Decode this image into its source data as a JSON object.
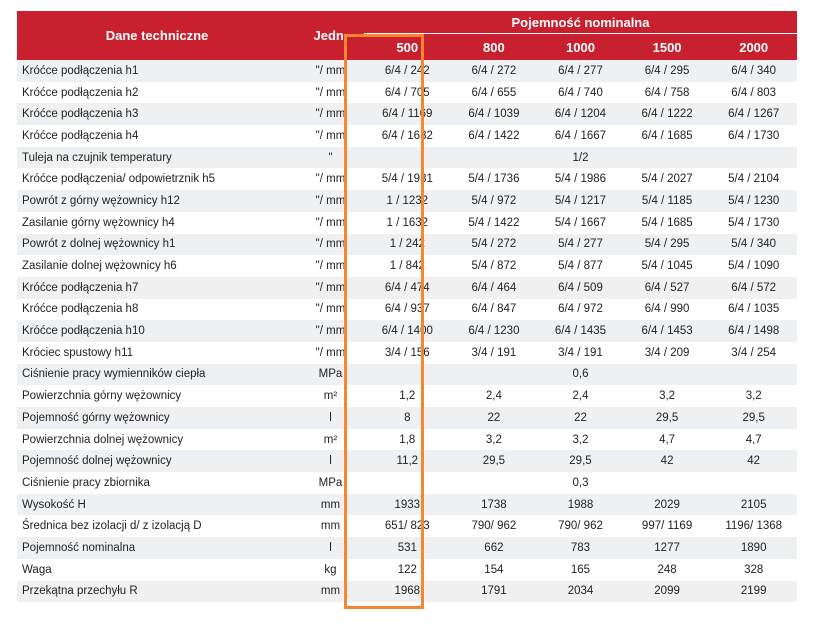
{
  "header": {
    "col_label": "Dane techniczne",
    "col_unit": "Jedn.",
    "group_label": "Pojemność nominalna",
    "capacities": [
      "500",
      "800",
      "1000",
      "1500",
      "2000"
    ]
  },
  "highlight_color": "#f7862f",
  "header_color": "#c8202f",
  "rows": [
    {
      "label": "Króćce podłączenia h1",
      "unit": "\"/ mm",
      "values": [
        "6/4 / 242",
        "6/4 / 272",
        "6/4 / 277",
        "6/4 / 295",
        "6/4 / 340"
      ]
    },
    {
      "label": "Króćce podłączenia h2",
      "unit": "\"/ mm",
      "values": [
        "6/4 / 705",
        "6/4 / 655",
        "6/4 / 740",
        "6/4 / 758",
        "6/4 / 803"
      ]
    },
    {
      "label": "Króćce podłączenia h3",
      "unit": "\"/ mm",
      "values": [
        "6/4 / 1169",
        "6/4 / 1039",
        "6/4 / 1204",
        "6/4 / 1222",
        "6/4 / 1267"
      ]
    },
    {
      "label": "Króćce podłączenia h4",
      "unit": "\"/ mm",
      "values": [
        "6/4 / 1632",
        "6/4 / 1422",
        "6/4 / 1667",
        "6/4 / 1685",
        "6/4 / 1730"
      ]
    },
    {
      "label": "Tuleja na czujnik temperatury",
      "unit": "\"",
      "merged": "1/2"
    },
    {
      "label": "Króćce podłączenia/ odpowietrznik h5",
      "unit": "\"/ mm",
      "values": [
        "5/4 / 1931",
        "5/4 / 1736",
        "5/4 / 1986",
        "5/4 / 2027",
        "5/4 / 2104"
      ]
    },
    {
      "label": "Powrót z górny wężownicy h12",
      "unit": "\"/ mm",
      "values": [
        "1 / 1232",
        "5/4 / 972",
        "5/4 / 1217",
        "5/4 / 1185",
        "5/4 / 1230"
      ]
    },
    {
      "label": "Zasilanie górny wężownicy h4",
      "unit": "\"/ mm",
      "values": [
        "1 / 1632",
        "5/4 / 1422",
        "5/4 / 1667",
        "5/4 / 1685",
        "5/4 / 1730"
      ]
    },
    {
      "label": "Powrót z dolnej wężownicy h1",
      "unit": "\"/ mm",
      "values": [
        "1 / 242",
        "5/4 / 272",
        "5/4 / 277",
        "5/4 / 295",
        "5/4 / 340"
      ]
    },
    {
      "label": "Zasilanie dolnej wężownicy h6",
      "unit": "\"/ mm",
      "values": [
        "1 / 842",
        "5/4 / 872",
        "5/4 / 877",
        "5/4 / 1045",
        "5/4 / 1090"
      ]
    },
    {
      "label": "Króćce podłączenia h7",
      "unit": "\"/ mm",
      "values": [
        "6/4 / 474",
        "6/4 / 464",
        "6/4 / 509",
        "6/4 / 527",
        "6/4 / 572"
      ]
    },
    {
      "label": "Króćce podłączenia h8",
      "unit": "\"/ mm",
      "values": [
        "6/4 / 937",
        "6/4 / 847",
        "6/4 / 972",
        "6/4 / 990",
        "6/4 / 1035"
      ]
    },
    {
      "label": "Króćce podłączenia h10",
      "unit": "\"/ mm",
      "values": [
        "6/4 / 1400",
        "6/4 / 1230",
        "6/4 / 1435",
        "6/4 / 1453",
        "6/4 / 1498"
      ]
    },
    {
      "label": "Króciec spustowy h11",
      "unit": "\"/ mm",
      "values": [
        "3/4 / 156",
        "3/4 / 191",
        "3/4 / 191",
        "3/4 / 209",
        "3/4 / 254"
      ]
    },
    {
      "label": "Ciśnienie pracy wymienników ciepła",
      "unit": "MPa",
      "merged": "0,6"
    },
    {
      "label": "Powierzchnia górny wężownicy",
      "unit": "m²",
      "values": [
        "1,2",
        "2,4",
        "2,4",
        "3,2",
        "3,2"
      ]
    },
    {
      "label": "Pojemność górny wężownicy",
      "unit": "l",
      "values": [
        "8",
        "22",
        "22",
        "29,5",
        "29,5"
      ]
    },
    {
      "label": "Powierzchnia dolnej wężownicy",
      "unit": "m²",
      "values": [
        "1,8",
        "3,2",
        "3,2",
        "4,7",
        "4,7"
      ]
    },
    {
      "label": "Pojemność dolnej wężownicy",
      "unit": "l",
      "values": [
        "11,2",
        "29,5",
        "29,5",
        "42",
        "42"
      ]
    },
    {
      "label": "Ciśnienie pracy zbiornika",
      "unit": "MPa",
      "merged": "0,3"
    },
    {
      "label": "Wysokość H",
      "unit": "mm",
      "values": [
        "1933",
        "1738",
        "1988",
        "2029",
        "2105"
      ]
    },
    {
      "label": "Średnica bez izolacji d/ z izolacją D",
      "unit": "mm",
      "values": [
        "651/ 823",
        "790/ 962",
        "790/ 962",
        "997/ 1169",
        "1196/ 1368"
      ]
    },
    {
      "label": "Pojemność nominalna",
      "unit": "l",
      "values": [
        "531",
        "662",
        "783",
        "1277",
        "1890"
      ]
    },
    {
      "label": "Waga",
      "unit": "kg",
      "values": [
        "122",
        "154",
        "165",
        "248",
        "328"
      ]
    },
    {
      "label": "Przekątna przechyłu R",
      "unit": "mm",
      "values": [
        "1968",
        "1791",
        "2034",
        "2099",
        "2199"
      ]
    }
  ]
}
